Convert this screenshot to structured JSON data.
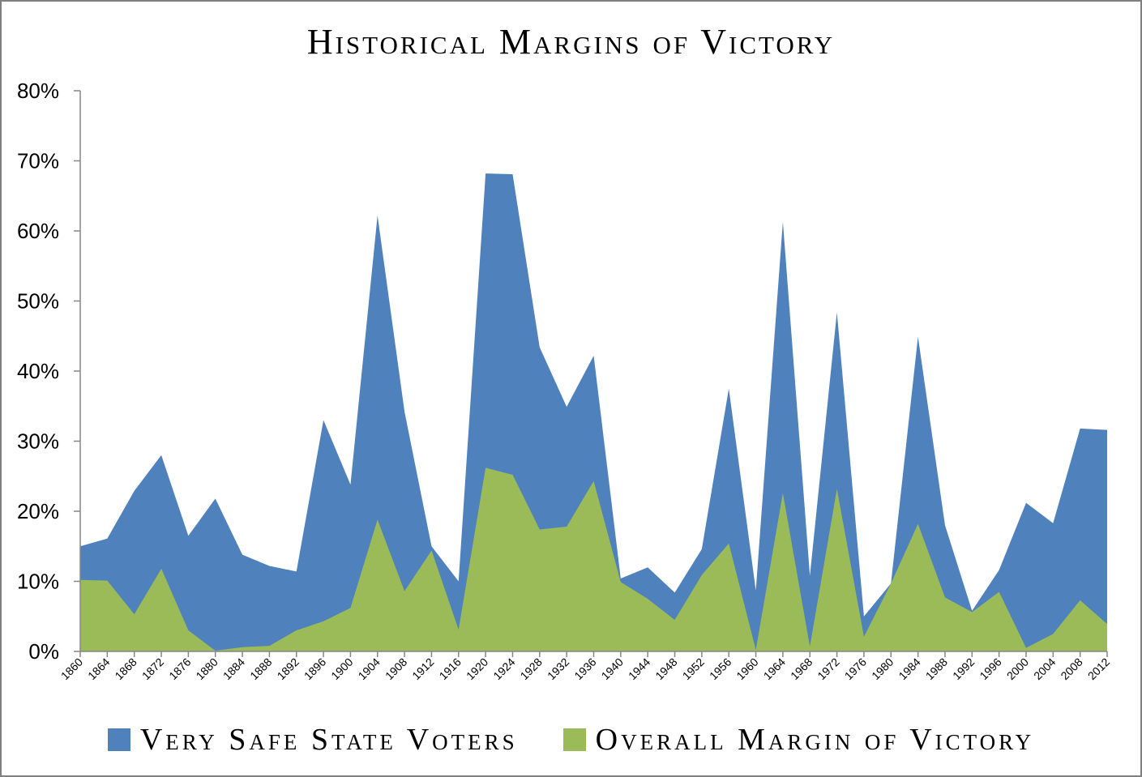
{
  "chart_data": {
    "type": "area",
    "title": "Historical Margins of Victory",
    "xlabel": "",
    "ylabel": "",
    "ylim": [
      0,
      80
    ],
    "y_ticks": [
      "0%",
      "10%",
      "20%",
      "30%",
      "40%",
      "50%",
      "60%",
      "70%",
      "80%"
    ],
    "y_tick_values": [
      0,
      10,
      20,
      30,
      40,
      50,
      60,
      70,
      80
    ],
    "categories": [
      "1860",
      "1864",
      "1868",
      "1872",
      "1876",
      "1880",
      "1884",
      "1888",
      "1892",
      "1896",
      "1900",
      "1904",
      "1908",
      "1912",
      "1916",
      "1920",
      "1924",
      "1928",
      "1932",
      "1936",
      "1940",
      "1944",
      "1948",
      "1952",
      "1956",
      "1960",
      "1964",
      "1968",
      "1972",
      "1976",
      "1980",
      "1984",
      "1988",
      "1992",
      "1996",
      "2000",
      "2004",
      "2008",
      "2012"
    ],
    "series": [
      {
        "name": "Very Safe State Voters",
        "color": "#4f81bd",
        "values": [
          15.0,
          16.1,
          22.9,
          28.0,
          16.5,
          21.8,
          13.8,
          12.2,
          11.4,
          33.0,
          23.8,
          62.2,
          34.2,
          15.0,
          10.0,
          68.2,
          68.1,
          43.4,
          34.9,
          42.2,
          10.4,
          12.0,
          8.4,
          14.6,
          37.5,
          8.7,
          61.3,
          10.8,
          48.4,
          5.0,
          9.7,
          44.9,
          18.0,
          5.8,
          11.6,
          21.2,
          18.3,
          31.8,
          31.6
        ]
      },
      {
        "name": "Overall Margin of Victory",
        "color": "#9bbb59",
        "values": [
          10.2,
          10.1,
          5.3,
          11.8,
          3.0,
          0.1,
          0.6,
          0.8,
          3.0,
          4.3,
          6.2,
          18.8,
          8.6,
          14.4,
          3.1,
          26.2,
          25.2,
          17.4,
          17.8,
          24.3,
          9.9,
          7.5,
          4.5,
          10.9,
          15.4,
          0.2,
          22.6,
          0.7,
          23.2,
          2.1,
          9.7,
          18.2,
          7.7,
          5.6,
          8.5,
          0.5,
          2.5,
          7.3,
          3.9
        ]
      }
    ],
    "grid": false,
    "legend_position": "bottom"
  }
}
